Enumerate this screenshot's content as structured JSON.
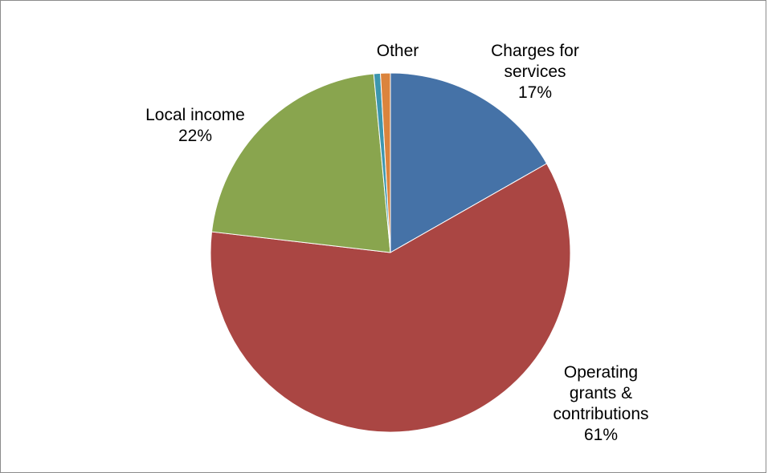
{
  "chart_data": {
    "type": "pie",
    "title": "",
    "start_angle_deg": 0,
    "direction": "clockwise",
    "slices": [
      {
        "label_lines": [
          "Charges for",
          "services",
          "17%"
        ],
        "value": 17,
        "color": "#4572a7"
      },
      {
        "label_lines": [
          "Operating",
          "grants &",
          "contributions",
          "61%"
        ],
        "value": 61,
        "color": "#aa4643"
      },
      {
        "label_lines": [
          "Local income",
          "22%"
        ],
        "value": 22,
        "color": "#89a54e"
      },
      {
        "label_lines": [],
        "value": 0.6,
        "color": "#3d96ae"
      },
      {
        "label_lines": [
          "Other"
        ],
        "value": 0.9,
        "color": "#db843d"
      }
    ],
    "legend": "none"
  }
}
